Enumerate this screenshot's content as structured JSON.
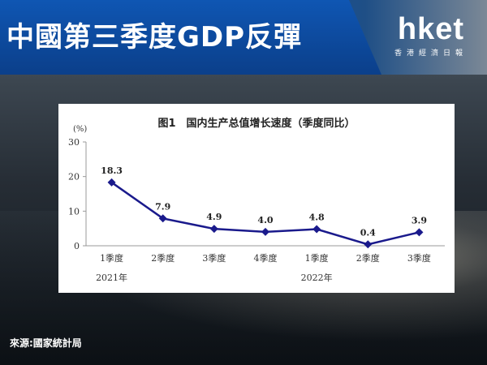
{
  "header": {
    "title": "中國第三季度GDP反彈",
    "logo_text": "hket",
    "logo_subtext": "香港經濟日報"
  },
  "footer": {
    "source": "來源:國家統計局"
  },
  "colors": {
    "title_panel": "#0b3f8a",
    "series_line": "#1a1a8c",
    "chart_background": "#ffffff"
  },
  "chart_data": {
    "type": "line",
    "title": "图1　国内生产总值增长速度（季度同比）",
    "ylabel": "(%)",
    "ylim": [
      0,
      30
    ],
    "yticks": [
      0,
      10,
      20,
      30
    ],
    "grid": false,
    "categories": [
      "1季度",
      "2季度",
      "3季度",
      "4季度",
      "1季度",
      "2季度",
      "3季度"
    ],
    "year_groups": [
      {
        "label": "2021年",
        "first_index": 0
      },
      {
        "label": "2022年",
        "first_index": 4
      }
    ],
    "values": [
      18.3,
      7.9,
      4.9,
      4.0,
      4.8,
      0.4,
      3.9
    ],
    "value_labels": [
      "18.3",
      "7.9",
      "4.9",
      "4.0",
      "4.8",
      "0.4",
      "3.9"
    ]
  }
}
